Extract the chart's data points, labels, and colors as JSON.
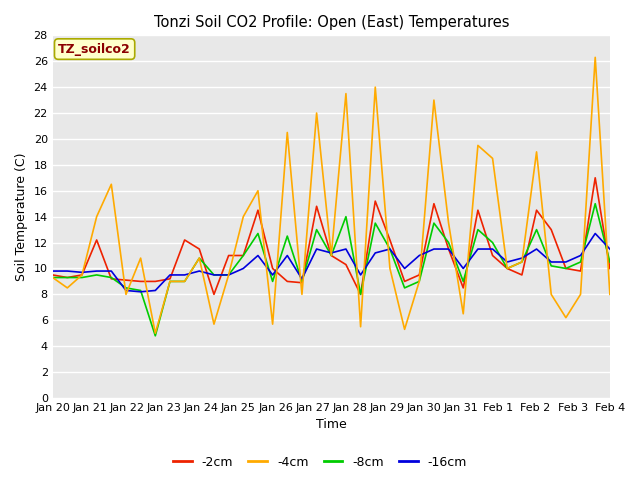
{
  "title": "Tonzi Soil CO2 Profile: Open (East) Temperatures",
  "xlabel": "Time",
  "ylabel": "Soil Temperature (C)",
  "ylim": [
    0,
    28
  ],
  "yticks": [
    0,
    2,
    4,
    6,
    8,
    10,
    12,
    14,
    16,
    18,
    20,
    22,
    24,
    26,
    28
  ],
  "fig_bg_color": "#ffffff",
  "plot_bg_color": "#e8e8e8",
  "legend_label": "TZ_soilco2",
  "legend_text_color": "#8b0000",
  "legend_box_facecolor": "#ffffcc",
  "legend_box_edgecolor": "#aaaa00",
  "series_colors": {
    "-2cm": "#ee2200",
    "-4cm": "#ffaa00",
    "-8cm": "#00cc00",
    "-16cm": "#0000dd"
  },
  "x_tick_labels": [
    "Jan 20",
    "Jan 21",
    "Jan 22",
    "Jan 23",
    "Jan 24",
    "Jan 25",
    "Jan 26",
    "Jan 27",
    "Jan 28",
    "Jan 29",
    "Jan 30",
    "Jan 31",
    "Feb 1",
    "Feb 2",
    "Feb 3",
    "Feb 4"
  ],
  "data_2cm": [
    9.5,
    9.3,
    9.5,
    12.2,
    9.2,
    9.1,
    9.0,
    9.0,
    9.2,
    12.2,
    11.5,
    8.0,
    11.0,
    11.0,
    14.5,
    10.0,
    9.0,
    8.9,
    14.8,
    11.0,
    10.3,
    8.0,
    15.2,
    12.2,
    9.0,
    9.5,
    15.0,
    11.5,
    8.5,
    14.5,
    11.0,
    10.0,
    9.5,
    14.5,
    13.0,
    10.0,
    9.8,
    17.0,
    10.0
  ],
  "data_4cm": [
    9.3,
    8.5,
    9.5,
    14.0,
    16.5,
    8.0,
    10.8,
    5.0,
    9.0,
    9.0,
    10.8,
    5.7,
    9.5,
    14.0,
    16.0,
    5.7,
    20.5,
    8.0,
    22.0,
    11.0,
    23.5,
    5.5,
    24.0,
    10.0,
    5.3,
    9.0,
    23.0,
    13.5,
    6.5,
    19.5,
    18.5,
    10.0,
    10.5,
    19.0,
    8.0,
    6.2,
    8.0,
    26.3,
    8.0
  ],
  "data_8cm": [
    9.3,
    9.3,
    9.3,
    9.5,
    9.3,
    8.5,
    8.3,
    4.8,
    9.0,
    9.0,
    10.8,
    9.5,
    9.5,
    11.0,
    12.7,
    9.0,
    12.5,
    9.0,
    13.0,
    11.0,
    14.0,
    8.0,
    13.5,
    11.5,
    8.5,
    9.0,
    13.5,
    12.0,
    9.0,
    13.0,
    12.0,
    10.0,
    10.5,
    13.0,
    10.2,
    10.0,
    10.5,
    15.0,
    10.5
  ],
  "data_16cm": [
    9.8,
    9.8,
    9.7,
    9.8,
    9.8,
    8.3,
    8.2,
    8.3,
    9.5,
    9.5,
    9.8,
    9.5,
    9.5,
    10.0,
    11.0,
    9.5,
    11.0,
    9.2,
    11.5,
    11.2,
    11.5,
    9.5,
    11.2,
    11.5,
    10.0,
    11.0,
    11.5,
    11.5,
    10.0,
    11.5,
    11.5,
    10.5,
    10.8,
    11.5,
    10.5,
    10.5,
    11.0,
    12.7,
    11.5
  ]
}
